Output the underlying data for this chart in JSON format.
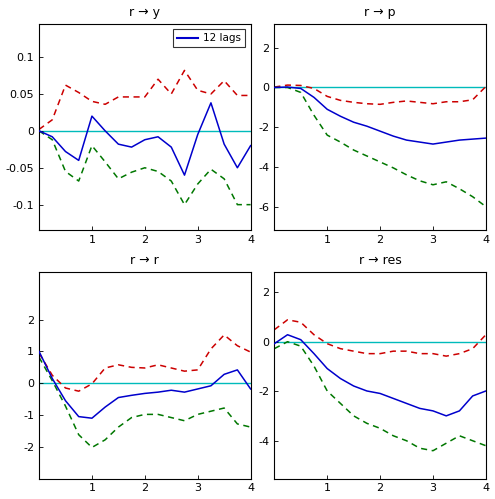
{
  "titles": [
    "r → y",
    "r → p",
    "r → r",
    "r → res"
  ],
  "legend_label": "12 lags",
  "subplot_data": {
    "ry": {
      "x": [
        0,
        0.25,
        0.5,
        0.75,
        1.0,
        1.25,
        1.5,
        1.75,
        2.0,
        2.25,
        2.5,
        2.75,
        3.0,
        3.25,
        3.5,
        3.75,
        4.0
      ],
      "blue": [
        0.0,
        -0.008,
        -0.028,
        -0.04,
        0.02,
        0.0,
        -0.018,
        -0.022,
        -0.012,
        -0.008,
        -0.022,
        -0.06,
        -0.005,
        0.038,
        -0.018,
        -0.05,
        -0.02
      ],
      "red": [
        0.002,
        0.015,
        0.062,
        0.052,
        0.04,
        0.036,
        0.046,
        0.046,
        0.046,
        0.07,
        0.05,
        0.082,
        0.055,
        0.05,
        0.068,
        0.048,
        0.048
      ],
      "green": [
        0.0,
        -0.012,
        -0.055,
        -0.068,
        -0.02,
        -0.042,
        -0.065,
        -0.056,
        -0.05,
        -0.055,
        -0.068,
        -0.1,
        -0.072,
        -0.052,
        -0.065,
        -0.1,
        -0.1
      ],
      "ylim": [
        -0.135,
        0.145
      ],
      "yticks": [
        -0.1,
        -0.05,
        0.0,
        0.05,
        0.1
      ],
      "yticklabels": [
        "-0.1",
        "-0.05",
        "0",
        "0.05",
        "0.1"
      ]
    },
    "rp": {
      "x": [
        0,
        0.25,
        0.5,
        0.75,
        1.0,
        1.25,
        1.5,
        1.75,
        2.0,
        2.25,
        2.5,
        2.75,
        3.0,
        3.25,
        3.5,
        3.75,
        4.0
      ],
      "blue": [
        0.0,
        0.02,
        -0.05,
        -0.5,
        -1.1,
        -1.45,
        -1.75,
        -1.95,
        -2.2,
        -2.45,
        -2.65,
        -2.75,
        -2.85,
        -2.75,
        -2.65,
        -2.6,
        -2.55
      ],
      "red": [
        0.02,
        0.12,
        0.1,
        -0.05,
        -0.45,
        -0.65,
        -0.75,
        -0.82,
        -0.85,
        -0.75,
        -0.68,
        -0.75,
        -0.82,
        -0.72,
        -0.72,
        -0.62,
        0.05
      ],
      "green": [
        0.0,
        0.0,
        -0.25,
        -1.4,
        -2.4,
        -2.75,
        -3.15,
        -3.45,
        -3.75,
        -4.05,
        -4.4,
        -4.7,
        -4.9,
        -4.75,
        -5.1,
        -5.5,
        -6.0
      ],
      "ylim": [
        -7.2,
        3.2
      ],
      "yticks": [
        -6,
        -4,
        -2,
        0,
        2
      ],
      "yticklabels": [
        "-6",
        "-4",
        "-2",
        "0",
        "2"
      ]
    },
    "rr": {
      "x": [
        0,
        0.25,
        0.5,
        0.75,
        1.0,
        1.25,
        1.5,
        1.75,
        2.0,
        2.25,
        2.5,
        2.75,
        3.0,
        3.25,
        3.5,
        3.75,
        4.0
      ],
      "blue": [
        1.0,
        0.15,
        -0.55,
        -1.05,
        -1.1,
        -0.75,
        -0.45,
        -0.38,
        -0.32,
        -0.28,
        -0.22,
        -0.28,
        -0.18,
        -0.08,
        0.28,
        0.42,
        -0.18
      ],
      "red": [
        0.95,
        0.25,
        -0.15,
        -0.25,
        -0.02,
        0.48,
        0.58,
        0.5,
        0.48,
        0.58,
        0.48,
        0.38,
        0.42,
        1.08,
        1.52,
        1.18,
        0.98
      ],
      "green": [
        0.82,
        0.08,
        -0.72,
        -1.62,
        -2.02,
        -1.78,
        -1.38,
        -1.08,
        -0.98,
        -0.98,
        -1.08,
        -1.18,
        -0.98,
        -0.88,
        -0.78,
        -1.28,
        -1.38
      ],
      "ylim": [
        -3.0,
        3.5
      ],
      "yticks": [
        -2,
        -1,
        0,
        1,
        2
      ],
      "yticklabels": [
        "-2",
        "-1",
        "0",
        "1",
        "2"
      ]
    },
    "rres": {
      "x": [
        0,
        0.25,
        0.5,
        0.75,
        1.0,
        1.25,
        1.5,
        1.75,
        2.0,
        2.25,
        2.5,
        2.75,
        3.0,
        3.25,
        3.5,
        3.75,
        4.0
      ],
      "blue": [
        -0.08,
        0.28,
        0.08,
        -0.48,
        -1.08,
        -1.48,
        -1.78,
        -1.98,
        -2.08,
        -2.28,
        -2.48,
        -2.68,
        -2.78,
        -2.98,
        -2.78,
        -2.18,
        -1.98
      ],
      "red": [
        0.48,
        0.88,
        0.78,
        0.28,
        -0.08,
        -0.28,
        -0.38,
        -0.48,
        -0.48,
        -0.38,
        -0.38,
        -0.48,
        -0.48,
        -0.58,
        -0.48,
        -0.28,
        0.28
      ],
      "green": [
        -0.28,
        0.0,
        -0.18,
        -0.98,
        -1.98,
        -2.48,
        -2.98,
        -3.28,
        -3.48,
        -3.78,
        -3.98,
        -4.28,
        -4.38,
        -4.08,
        -3.78,
        -3.98,
        -4.18
      ],
      "ylim": [
        -5.5,
        2.8
      ],
      "yticks": [
        -4,
        -2,
        0,
        2
      ],
      "yticklabels": [
        "-4",
        "-2",
        "0",
        "2"
      ]
    }
  },
  "blue_color": "#0000CC",
  "red_color": "#CC0000",
  "green_color": "#007700",
  "cyan_color": "#00BBBB",
  "bg_color": "#FFFFFF",
  "line_width": 1.1,
  "title_fontsize": 9,
  "tick_fontsize": 8
}
